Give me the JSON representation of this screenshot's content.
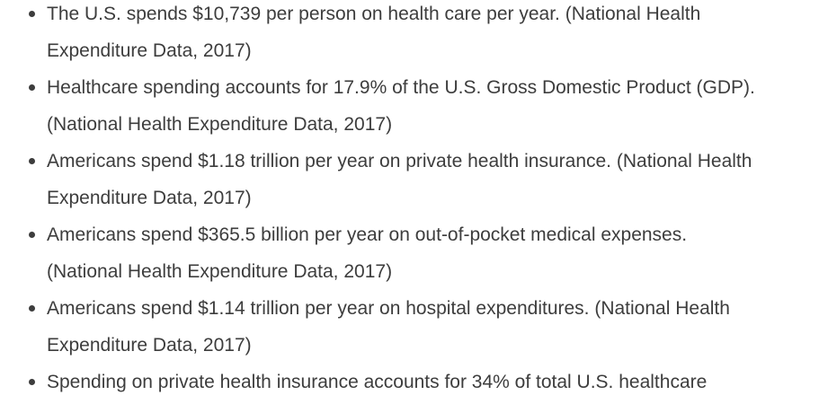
{
  "stats": {
    "items": [
      {
        "line1": "The U.S. spends $10,739 per person on health care per year. (National Health",
        "line2": "Expenditure Data, 2017)"
      },
      {
        "line1": "Healthcare spending accounts for 17.9% of the U.S. Gross Domestic Product (GDP).",
        "line2": "(National Health Expenditure Data, 2017)"
      },
      {
        "line1": "Americans spend $1.18 trillion per year on private health insurance. (National Health",
        "line2": "Expenditure Data, 2017)"
      },
      {
        "line1": "Americans spend $365.5 billion per year on out-of-pocket medical expenses.",
        "line2": "(National Health Expenditure Data, 2017)"
      },
      {
        "line1": "Americans spend $1.14 trillion per year on hospital expenditures. (National Health",
        "line2": "Expenditure Data, 2017)"
      },
      {
        "line1": "Spending on private health insurance accounts for 34% of total U.S. healthcare",
        "line2": ""
      }
    ]
  }
}
